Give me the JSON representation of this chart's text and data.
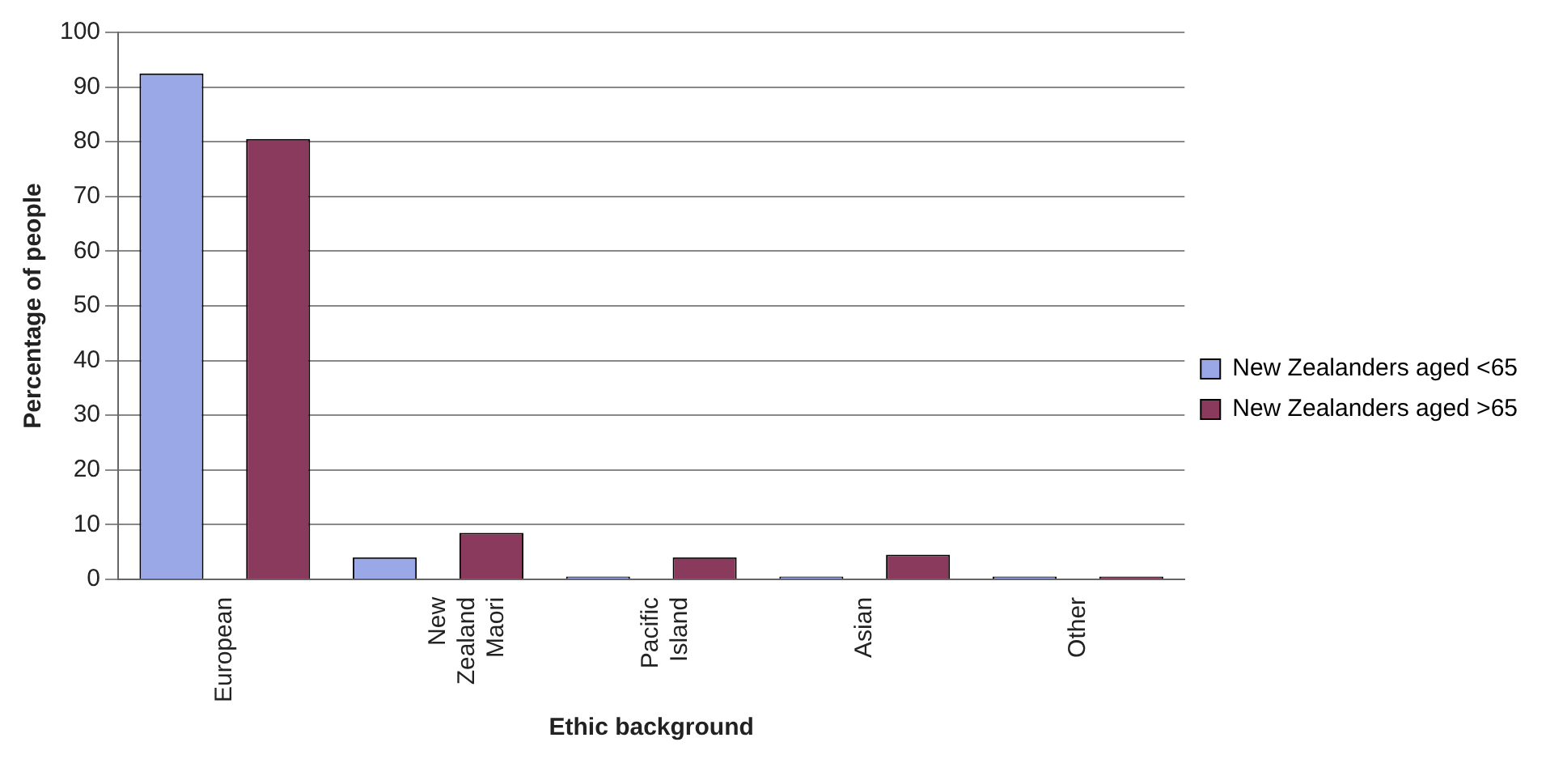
{
  "chart_data": {
    "type": "bar",
    "xlabel": "Ethic background",
    "ylabel": "Percentage of people",
    "categories": [
      "European",
      "New Zealand Maori",
      "Pacific Island",
      "Asian",
      "Other"
    ],
    "series": [
      {
        "name": "New Zealanders aged <65",
        "color": "#9aa8e8",
        "values": [
          92.5,
          4,
          0.5,
          0.5,
          0.5
        ]
      },
      {
        "name": "New Zealanders aged >65",
        "color": "#8a3a5c",
        "values": [
          80.5,
          8.5,
          4,
          4.5,
          0.5
        ]
      }
    ],
    "ylim": [
      0,
      100
    ],
    "yticks": [
      0,
      10,
      20,
      30,
      40,
      50,
      60,
      70,
      80,
      90,
      100
    ],
    "grid": "y",
    "legend": "right"
  }
}
